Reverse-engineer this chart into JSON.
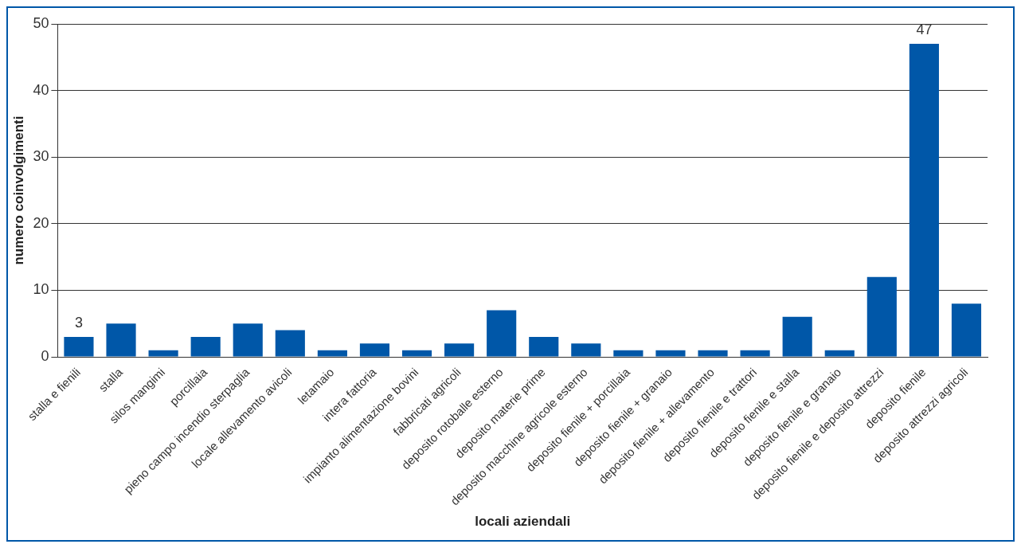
{
  "chart_data": {
    "type": "bar",
    "xlabel": "locali aziendali",
    "ylabel": "numero coinvolgimenti",
    "categories": [
      "stalla e fienili",
      "stalla",
      "silos mangimi",
      "porcillaia",
      "pieno campo incendio sterpaglia",
      "locale allevamento avicoli",
      "letamaio",
      "intera fattoria",
      "impianto alimentazione bovini",
      "fabbricati agricoli",
      "deposito rotoballe esterno",
      "deposito materie prime",
      "deposito macchine agricole esterno",
      "deposito fienile + porcillaia",
      "deposito fienile + granaio",
      "deposito fienile + allevamento",
      "deposito fienile e trattori",
      "deposito fienile e stalla",
      "deposito fienile e granaio",
      "deposito fienile e deposito attrezzi",
      "deposito fienile",
      "deposito attrezzi agricoli"
    ],
    "values": [
      3,
      5,
      1,
      3,
      5,
      4,
      1,
      2,
      1,
      2,
      7,
      3,
      2,
      1,
      1,
      1,
      1,
      6,
      1,
      12,
      47,
      8
    ],
    "value_labels": [
      "3",
      null,
      null,
      null,
      null,
      null,
      null,
      null,
      null,
      null,
      null,
      null,
      null,
      null,
      null,
      null,
      null,
      null,
      null,
      null,
      "47",
      null
    ],
    "color": "#0057a8",
    "ylim": [
      0,
      50
    ],
    "yticks": [
      0,
      10,
      20,
      30,
      40,
      50
    ],
    "grid": "y"
  }
}
